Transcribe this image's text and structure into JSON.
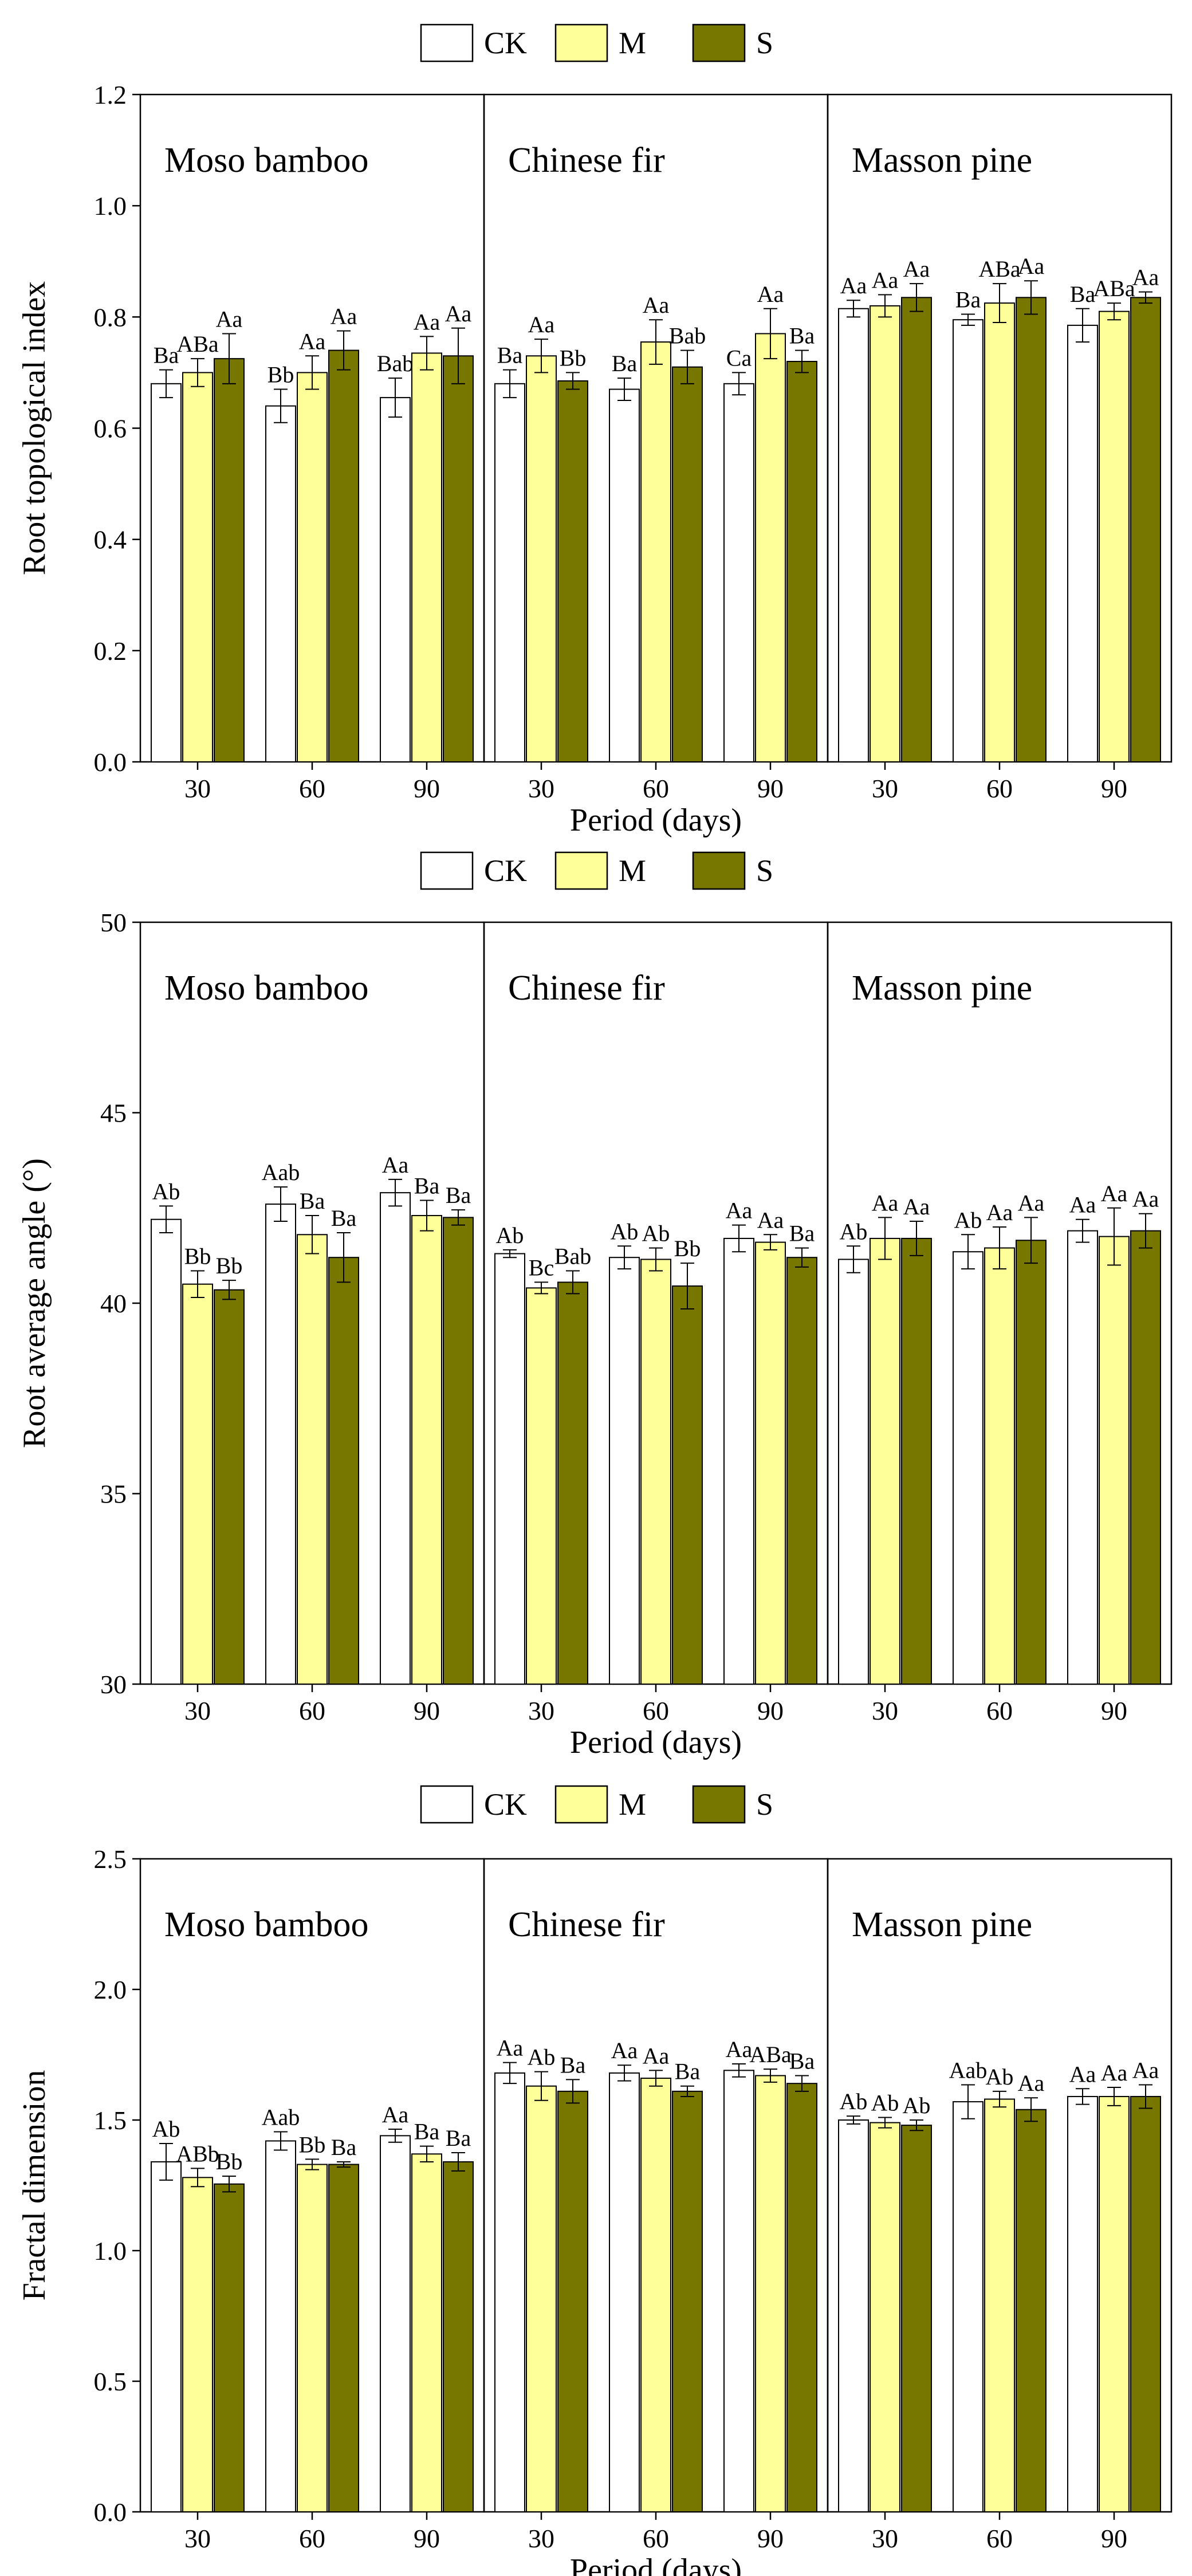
{
  "figure_title": "",
  "legend": [
    {
      "key": "CK",
      "label": "CK",
      "color": "#ffffff"
    },
    {
      "key": "M",
      "label": "M",
      "color": "#ffff99"
    },
    {
      "key": "S",
      "label": "S",
      "color": "#777700"
    }
  ],
  "chart_data": [
    {
      "type": "bar",
      "title": "",
      "ylabel": "Root topological index",
      "xlabel": "Period (days)",
      "ylim": [
        0.0,
        1.2
      ],
      "yticks": [
        "0.0",
        "0.2",
        "0.4",
        "0.6",
        "0.8",
        "1.0",
        "1.2"
      ],
      "grid": false,
      "legend_position": "top-center",
      "panels": [
        {
          "name": "Moso bamboo",
          "periods": [
            "30",
            "60",
            "90"
          ],
          "series": [
            {
              "name": "CK",
              "values": [
                0.68,
                0.64,
                0.655
              ],
              "errors": [
                0.025,
                0.03,
                0.035
              ],
              "labels": [
                "Ba",
                "Bb",
                "Bab"
              ]
            },
            {
              "name": "M",
              "values": [
                0.7,
                0.7,
                0.735
              ],
              "errors": [
                0.025,
                0.03,
                0.03
              ],
              "labels": [
                "ABa",
                "Aa",
                "Aa"
              ]
            },
            {
              "name": "S",
              "values": [
                0.725,
                0.74,
                0.73
              ],
              "errors": [
                0.045,
                0.035,
                0.05
              ],
              "labels": [
                "Aa",
                "Aa",
                "Aa"
              ]
            }
          ]
        },
        {
          "name": "Chinese fir",
          "periods": [
            "30",
            "60",
            "90"
          ],
          "series": [
            {
              "name": "CK",
              "values": [
                0.68,
                0.67,
                0.68
              ],
              "errors": [
                0.025,
                0.02,
                0.02
              ],
              "labels": [
                "Ba",
                "Ba",
                "Ca"
              ]
            },
            {
              "name": "M",
              "values": [
                0.73,
                0.755,
                0.77
              ],
              "errors": [
                0.03,
                0.04,
                0.045
              ],
              "labels": [
                "Aa",
                "Aa",
                "Aa"
              ]
            },
            {
              "name": "S",
              "values": [
                0.685,
                0.71,
                0.72
              ],
              "errors": [
                0.015,
                0.03,
                0.02
              ],
              "labels": [
                "Bb",
                "Bab",
                "Ba"
              ]
            }
          ]
        },
        {
          "name": "Masson pine",
          "periods": [
            "30",
            "60",
            "90"
          ],
          "series": [
            {
              "name": "CK",
              "values": [
                0.815,
                0.795,
                0.785
              ],
              "errors": [
                0.015,
                0.01,
                0.03
              ],
              "labels": [
                "Aa",
                "Ba",
                "Ba"
              ]
            },
            {
              "name": "M",
              "values": [
                0.82,
                0.825,
                0.81
              ],
              "errors": [
                0.02,
                0.035,
                0.015
              ],
              "labels": [
                "Aa",
                "ABa",
                "ABa"
              ]
            },
            {
              "name": "S",
              "values": [
                0.835,
                0.835,
                0.835
              ],
              "errors": [
                0.025,
                0.03,
                0.01
              ],
              "labels": [
                "Aa",
                "Aa",
                "Aa"
              ]
            }
          ]
        }
      ]
    },
    {
      "type": "bar",
      "title": "",
      "ylabel": "Root average angle (°)",
      "xlabel": "Period (days)",
      "ylim": [
        30,
        50
      ],
      "yticks": [
        "30",
        "35",
        "40",
        "45",
        "50"
      ],
      "grid": false,
      "legend_position": "top-center",
      "panels": [
        {
          "name": "Moso bamboo",
          "periods": [
            "30",
            "60",
            "90"
          ],
          "series": [
            {
              "name": "CK",
              "values": [
                42.2,
                42.6,
                42.9
              ],
              "errors": [
                0.35,
                0.45,
                0.35
              ],
              "labels": [
                "Ab",
                "Aab",
                "Aa"
              ]
            },
            {
              "name": "M",
              "values": [
                40.5,
                41.8,
                42.3
              ],
              "errors": [
                0.35,
                0.5,
                0.4
              ],
              "labels": [
                "Bb",
                "Ba",
                "Ba"
              ]
            },
            {
              "name": "S",
              "values": [
                40.35,
                41.2,
                42.25
              ],
              "errors": [
                0.25,
                0.65,
                0.2
              ],
              "labels": [
                "Bb",
                "Ba",
                "Ba"
              ]
            }
          ]
        },
        {
          "name": "Chinese fir",
          "periods": [
            "30",
            "60",
            "90"
          ],
          "series": [
            {
              "name": "CK",
              "values": [
                41.3,
                41.2,
                41.7
              ],
              "errors": [
                0.1,
                0.3,
                0.35
              ],
              "labels": [
                "Ab",
                "Ab",
                "Aa"
              ]
            },
            {
              "name": "M",
              "values": [
                40.4,
                41.15,
                41.6
              ],
              "errors": [
                0.15,
                0.3,
                0.2
              ],
              "labels": [
                "Bc",
                "Ab",
                "Aa"
              ]
            },
            {
              "name": "S",
              "values": [
                40.55,
                40.45,
                41.2
              ],
              "errors": [
                0.3,
                0.6,
                0.25
              ],
              "labels": [
                "Bab",
                "Bb",
                "Ba"
              ]
            }
          ]
        },
        {
          "name": "Masson pine",
          "periods": [
            "30",
            "60",
            "90"
          ],
          "series": [
            {
              "name": "CK",
              "values": [
                41.15,
                41.35,
                41.9
              ],
              "errors": [
                0.35,
                0.45,
                0.3
              ],
              "labels": [
                "Ab",
                "Ab",
                "Aa"
              ]
            },
            {
              "name": "M",
              "values": [
                41.7,
                41.45,
                41.75
              ],
              "errors": [
                0.55,
                0.55,
                0.75
              ],
              "labels": [
                "Aa",
                "Aa",
                "Aa"
              ]
            },
            {
              "name": "S",
              "values": [
                41.7,
                41.65,
                41.9
              ],
              "errors": [
                0.45,
                0.6,
                0.45
              ],
              "labels": [
                "Aa",
                "Aa",
                "Aa"
              ]
            }
          ]
        }
      ]
    },
    {
      "type": "bar",
      "title": "",
      "ylabel": "Fractal dimension",
      "xlabel": "Period (days)",
      "ylim": [
        0.0,
        2.5
      ],
      "yticks": [
        "0.0",
        "0.5",
        "1.0",
        "1.5",
        "2.0",
        "2.5"
      ],
      "grid": false,
      "legend_position": "top-center",
      "panels": [
        {
          "name": "Moso bamboo",
          "periods": [
            "30",
            "60",
            "90"
          ],
          "series": [
            {
              "name": "CK",
              "values": [
                1.34,
                1.42,
                1.44
              ],
              "errors": [
                0.07,
                0.035,
                0.025
              ],
              "labels": [
                "Ab",
                "Aab",
                "Aa"
              ]
            },
            {
              "name": "M",
              "values": [
                1.28,
                1.33,
                1.37
              ],
              "errors": [
                0.035,
                0.02,
                0.03
              ],
              "labels": [
                "ABb",
                "Bb",
                "Ba"
              ]
            },
            {
              "name": "S",
              "values": [
                1.255,
                1.33,
                1.34
              ],
              "errors": [
                0.03,
                0.01,
                0.035
              ],
              "labels": [
                "Bb",
                "Ba",
                "Ba"
              ]
            }
          ]
        },
        {
          "name": "Chinese fir",
          "periods": [
            "30",
            "60",
            "90"
          ],
          "series": [
            {
              "name": "CK",
              "values": [
                1.68,
                1.68,
                1.69
              ],
              "errors": [
                0.04,
                0.03,
                0.025
              ],
              "labels": [
                "Aa",
                "Aa",
                "Aa"
              ]
            },
            {
              "name": "M",
              "values": [
                1.63,
                1.66,
                1.67
              ],
              "errors": [
                0.055,
                0.03,
                0.025
              ],
              "labels": [
                "Ab",
                "Aa",
                "ABa"
              ]
            },
            {
              "name": "S",
              "values": [
                1.61,
                1.61,
                1.64
              ],
              "errors": [
                0.045,
                0.02,
                0.03
              ],
              "labels": [
                "Ba",
                "Ba",
                "Ba"
              ]
            }
          ]
        },
        {
          "name": "Masson pine",
          "periods": [
            "30",
            "60",
            "90"
          ],
          "series": [
            {
              "name": "CK",
              "values": [
                1.5,
                1.57,
                1.59
              ],
              "errors": [
                0.015,
                0.065,
                0.03
              ],
              "labels": [
                "Ab",
                "Aab",
                "Aa"
              ]
            },
            {
              "name": "M",
              "values": [
                1.49,
                1.58,
                1.59
              ],
              "errors": [
                0.02,
                0.03,
                0.035
              ],
              "labels": [
                "Ab",
                "Ab",
                "Aa"
              ]
            },
            {
              "name": "S",
              "values": [
                1.48,
                1.54,
                1.59
              ],
              "errors": [
                0.02,
                0.045,
                0.045
              ],
              "labels": [
                "Ab",
                "Aa",
                "Aa"
              ]
            }
          ]
        }
      ]
    }
  ]
}
